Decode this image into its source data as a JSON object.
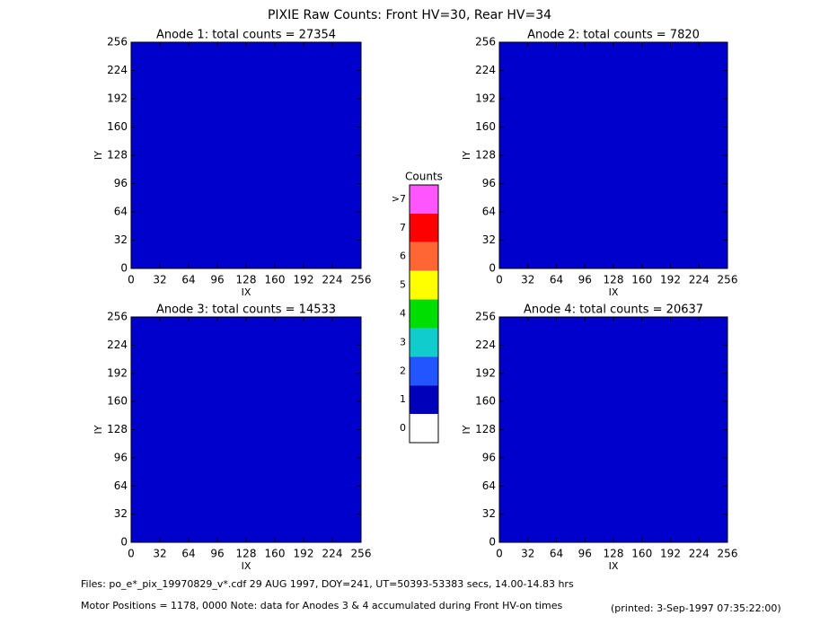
{
  "title": "PIXIE Raw Counts:  Front HV=30, Rear HV=34",
  "chart_data": [
    {
      "type": "heatmap",
      "title": "Anode 1: total counts = 27354",
      "xlabel": "IX",
      "ylabel": "IY",
      "xlim": [
        0,
        256
      ],
      "ylim": [
        0,
        256
      ],
      "xticks": [
        0,
        32,
        64,
        96,
        128,
        160,
        192,
        224,
        256
      ],
      "yticks": [
        0,
        32,
        64,
        96,
        128,
        160,
        192,
        224,
        256
      ]
    },
    {
      "type": "heatmap",
      "title": "Anode 2: total counts = 7820",
      "xlabel": "IX",
      "ylabel": "IY",
      "xlim": [
        0,
        256
      ],
      "ylim": [
        0,
        256
      ],
      "xticks": [
        0,
        32,
        64,
        96,
        128,
        160,
        192,
        224,
        256
      ],
      "yticks": [
        0,
        32,
        64,
        96,
        128,
        160,
        192,
        224,
        256
      ]
    },
    {
      "type": "heatmap",
      "title": "Anode 3: total counts = 14533",
      "xlabel": "IX",
      "ylabel": "IY",
      "xlim": [
        0,
        256
      ],
      "ylim": [
        0,
        256
      ],
      "xticks": [
        0,
        32,
        64,
        96,
        128,
        160,
        192,
        224,
        256
      ],
      "yticks": [
        0,
        32,
        64,
        96,
        128,
        160,
        192,
        224,
        256
      ]
    },
    {
      "type": "heatmap",
      "title": "Anode 4: total counts = 20637",
      "xlabel": "IX",
      "ylabel": "IY",
      "xlim": [
        0,
        256
      ],
      "ylim": [
        0,
        256
      ],
      "xticks": [
        0,
        32,
        64,
        96,
        128,
        160,
        192,
        224,
        256
      ],
      "yticks": [
        0,
        32,
        64,
        96,
        128,
        160,
        192,
        224,
        256
      ]
    }
  ],
  "colorbar": {
    "title": "Counts",
    "levels": [
      {
        "label": ">7",
        "color": "#ff55ff"
      },
      {
        "label": "7",
        "color": "#ff0000"
      },
      {
        "label": "6",
        "color": "#ff6633"
      },
      {
        "label": "5",
        "color": "#ffff00"
      },
      {
        "label": "4",
        "color": "#00dd00"
      },
      {
        "label": "3",
        "color": "#11cccc"
      },
      {
        "label": "2",
        "color": "#2255ff"
      },
      {
        "label": "1",
        "color": "#0000bb"
      },
      {
        "label": "0",
        "color": "#ffffff"
      }
    ]
  },
  "footer": {
    "files": "Files: po_e*_pix_19970829_v*.cdf    29 AUG 1997, DOY=241, UT=50393-53383 secs, 14.00-14.83 hrs",
    "motor": "Motor Positions = 1178, 0000   Note: data for Anodes 3 & 4 accumulated during Front HV-on times",
    "printed": "(printed:  3-Sep-1997 07:35:22:00)"
  }
}
